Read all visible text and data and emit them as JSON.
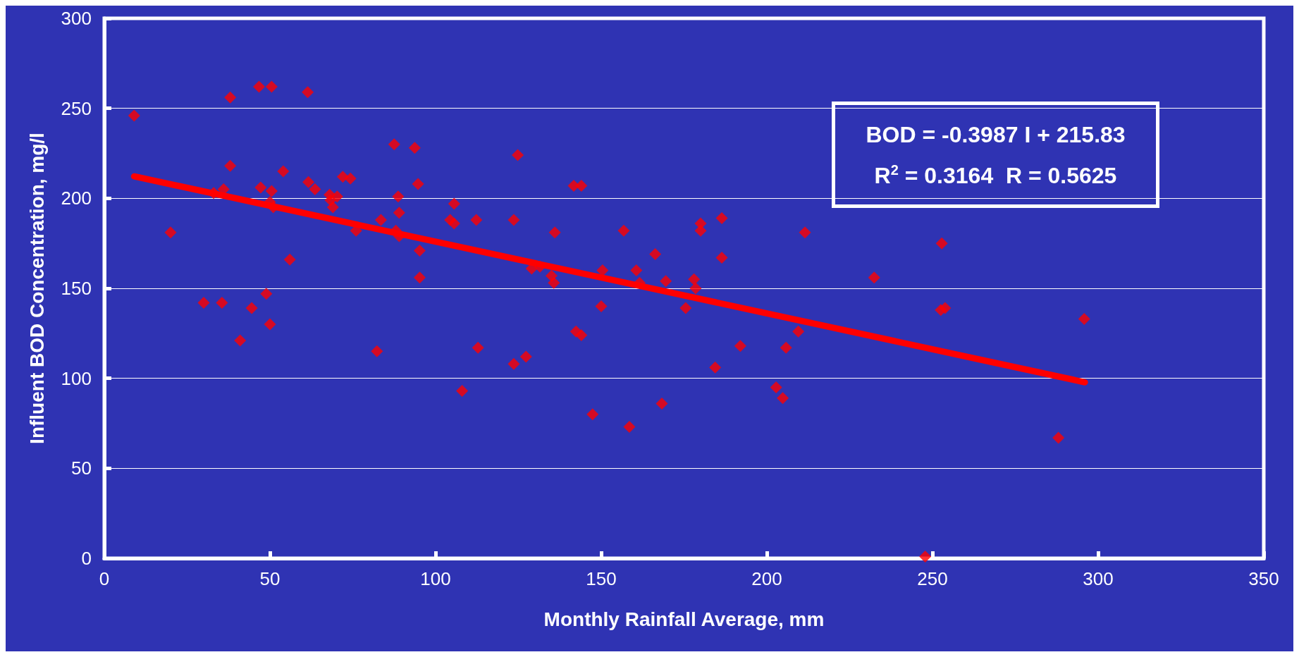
{
  "chart_data": {
    "type": "scatter",
    "xlabel": "Monthly Rainfall Average, mm",
    "ylabel": "Influent BOD Concentration, mg/l",
    "xlim": [
      0,
      350
    ],
    "xticks": [
      0,
      50,
      100,
      150,
      200,
      250,
      300,
      350
    ],
    "ylim": [
      0,
      300
    ],
    "yticks": [
      0,
      50,
      100,
      150,
      200,
      250,
      300
    ],
    "grid": "y",
    "annotations": [
      "BOD = -0.3987 I + 215.83",
      "R$^{2}$ = 0.3164  R = 0.5625"
    ],
    "series": [
      {
        "color": "#ff0000",
        "marker": "diamond",
        "x": [
          9,
          20,
          30,
          33,
          35.5,
          36,
          38,
          38,
          41,
          44.5,
          46.7,
          47.2,
          48.9,
          50.5,
          50,
          50.5,
          50,
          51,
          54,
          56,
          61.4,
          61.6,
          63.6,
          68,
          68.3,
          69,
          70.3,
          72,
          74.3,
          76,
          82.3,
          83.5,
          87.5,
          88,
          88.7,
          89,
          89,
          93.7,
          94.7,
          95.2,
          95.2,
          104.4,
          105.6,
          105.6,
          108,
          112.3,
          112.8,
          123.6,
          123.6,
          124.8,
          127.3,
          129,
          131.5,
          135,
          135.7,
          136,
          141.7,
          144,
          142.4,
          144,
          147.4,
          150,
          150.4,
          156.8,
          158.5,
          160.6,
          161.6,
          166.3,
          168.3,
          169.5,
          175.5,
          178,
          178.5,
          180,
          180,
          184.4,
          186.4,
          186.4,
          192,
          202.8,
          204.8,
          205.8,
          209.5,
          211.5,
          232.4,
          247.8,
          252.5,
          253.8,
          252.8,
          288,
          295.8
        ],
        "values": [
          246,
          181,
          142,
          203,
          142,
          205,
          256,
          218,
          121,
          139,
          262,
          206,
          147,
          262,
          130,
          204,
          198,
          195,
          215,
          166,
          259,
          209,
          205,
          202,
          199,
          195,
          201,
          212,
          211,
          182,
          115,
          188,
          230,
          182,
          201,
          192,
          179,
          228,
          208,
          171,
          156,
          188,
          186,
          197,
          93,
          188,
          117,
          188,
          108,
          224,
          112,
          161,
          162,
          157,
          153,
          181,
          207,
          207,
          126,
          124,
          80,
          140,
          160,
          182,
          73,
          160,
          153,
          169,
          86,
          154,
          139,
          155,
          150,
          186,
          182,
          106,
          189,
          167,
          118,
          95,
          89,
          117,
          126,
          181,
          156,
          1,
          138,
          139,
          175,
          67,
          133
        ]
      },
      {
        "type": "line",
        "color": "#ff0000",
        "marker": "none",
        "line_style": "solid",
        "x": [
          9,
          296
        ],
        "values": [
          212.2,
          97.8
        ]
      }
    ]
  }
}
